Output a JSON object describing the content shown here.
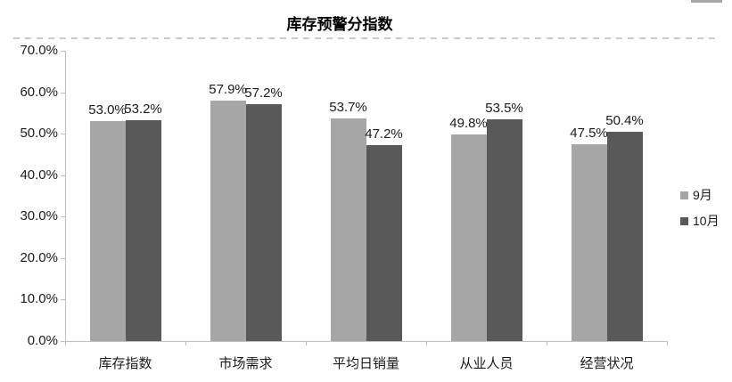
{
  "page": {
    "top_right_strip_color": "#a6a6a6"
  },
  "chart_data": {
    "type": "bar",
    "title": "库存预警分指数",
    "categories": [
      "库存指数",
      "市场需求",
      "平均日销量",
      "从业人员",
      "经营状况"
    ],
    "series": [
      {
        "name": "9月",
        "color": "#a6a6a6",
        "values": [
          53.0,
          57.9,
          53.7,
          49.8,
          47.5
        ],
        "labels": [
          "53.0%",
          "57.9%",
          "53.7%",
          "49.8%",
          "47.5%"
        ]
      },
      {
        "name": "10月",
        "color": "#595959",
        "values": [
          53.2,
          57.2,
          47.2,
          53.5,
          50.4
        ],
        "labels": [
          "53.2%",
          "57.2%",
          "47.2%",
          "53.5%",
          "50.4%"
        ]
      }
    ],
    "y_axis": {
      "min": 0,
      "max": 70,
      "step": 10,
      "tick_labels": [
        "0.0%",
        "10.0%",
        "20.0%",
        "30.0%",
        "40.0%",
        "50.0%",
        "60.0%",
        "70.0%"
      ]
    },
    "legend": {
      "position": "right",
      "entries": [
        "9月",
        "10月"
      ]
    },
    "grid": false,
    "axis_color": "#bfbfbf"
  }
}
